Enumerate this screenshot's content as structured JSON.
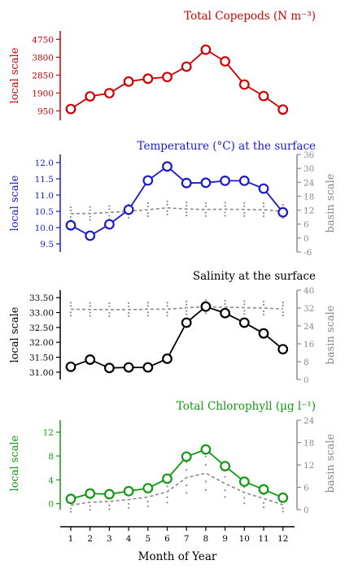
{
  "colors": {
    "copepods": "#cc0000",
    "temperature": "#1a1acc",
    "salinity": "#000000",
    "chlorophyll": "#119911",
    "basin": "#8a8a8a"
  },
  "x_axis": {
    "label": "Month of Year",
    "ticks": [
      "1",
      "2",
      "3",
      "4",
      "5",
      "6",
      "7",
      "8",
      "9",
      "10",
      "11",
      "12"
    ]
  },
  "panels": [
    {
      "key": "copepods",
      "title": "Total Copepods (N m⁻³)",
      "left_label": "local scale",
      "right_label": "",
      "left_ticks": [
        "950",
        "1900",
        "2850",
        "3800",
        "4750"
      ],
      "right_ticks": []
    },
    {
      "key": "temperature",
      "title": "Temperature (°C) at the surface",
      "left_label": "local scale",
      "right_label": "basin scale",
      "left_ticks": [
        "9.5",
        "10.0",
        "10.5",
        "11.0",
        "11.5",
        "12.0"
      ],
      "right_ticks": [
        "-6",
        "0",
        "6",
        "12",
        "18",
        "24",
        "30",
        "36"
      ]
    },
    {
      "key": "salinity",
      "title": "Salinity at the surface",
      "left_label": "local scale",
      "right_label": "basin scale",
      "left_ticks": [
        "31.00",
        "31.50",
        "32.00",
        "32.50",
        "33.00",
        "33.50"
      ],
      "right_ticks": [
        "0",
        "8",
        "16",
        "24",
        "32",
        "40"
      ]
    },
    {
      "key": "chlorophyll",
      "title": "Total Chlorophyll (µg l⁻¹)",
      "left_label": "local scale",
      "right_label": "basin scale",
      "left_ticks": [
        "0",
        "4",
        "8",
        "12"
      ],
      "right_ticks": [
        "0",
        "6",
        "12",
        "18",
        "24"
      ]
    }
  ],
  "chart_data": [
    {
      "type": "line",
      "title": "Total Copepods (N m⁻³)",
      "xlabel": "Month of Year",
      "ylabel": "local scale",
      "x": [
        1,
        2,
        3,
        4,
        5,
        6,
        7,
        8,
        9,
        10,
        11,
        12
      ],
      "ylim": [
        450,
        5200
      ],
      "series": [
        {
          "values": [
            1050,
            1720,
            1890,
            2510,
            2660,
            2750,
            3300,
            4200,
            3580,
            2350,
            1740,
            1020
          ]
        }
      ]
    },
    {
      "type": "line",
      "title": "Temperature (°C) at the surface",
      "xlabel": "Month of Year",
      "ylabel": "local scale",
      "y2label": "basin scale",
      "x": [
        1,
        2,
        3,
        4,
        5,
        6,
        7,
        8,
        9,
        10,
        11,
        12
      ],
      "ylim": [
        9.25,
        12.25
      ],
      "y2lim": [
        -6,
        36
      ],
      "series": [
        {
          "axis": "local",
          "values": [
            10.07,
            9.75,
            10.1,
            10.55,
            11.45,
            11.88,
            11.37,
            11.38,
            11.44,
            11.44,
            11.2,
            10.47
          ]
        },
        {
          "axis": "basin",
          "values": [
            10.5,
            10.6,
            11.0,
            11.6,
            12.2,
            13.0,
            12.5,
            12.3,
            12.4,
            12.3,
            12.2,
            11.5
          ]
        }
      ]
    },
    {
      "type": "line",
      "title": "Salinity at the surface",
      "xlabel": "Month of Year",
      "ylabel": "local scale",
      "y2label": "basin scale",
      "x": [
        1,
        2,
        3,
        4,
        5,
        6,
        7,
        8,
        9,
        10,
        11,
        12
      ],
      "ylim": [
        30.75,
        33.75
      ],
      "y2lim": [
        0,
        40
      ],
      "series": [
        {
          "axis": "local",
          "values": [
            31.18,
            31.42,
            31.14,
            31.16,
            31.16,
            31.45,
            32.66,
            33.2,
            32.98,
            32.66,
            32.3,
            31.77
          ]
        },
        {
          "axis": "basin",
          "values": [
            31.5,
            31.4,
            31.3,
            31.3,
            31.5,
            31.5,
            32.1,
            32.6,
            32.4,
            32.2,
            32.0,
            31.6
          ]
        }
      ]
    },
    {
      "type": "line",
      "title": "Total Chlorophyll (µg l⁻¹)",
      "xlabel": "Month of Year",
      "ylabel": "local scale",
      "y2label": "basin scale",
      "x": [
        1,
        2,
        3,
        4,
        5,
        6,
        7,
        8,
        9,
        10,
        11,
        12
      ],
      "ylim": [
        -1,
        14
      ],
      "y2lim": [
        0,
        24
      ],
      "series": [
        {
          "axis": "local",
          "values": [
            0.8,
            1.7,
            1.6,
            2.1,
            2.6,
            4.2,
            7.9,
            9.1,
            6.3,
            3.7,
            2.4,
            1.0
          ]
        },
        {
          "axis": "basin",
          "values": [
            1.2,
            2.0,
            2.2,
            2.7,
            3.4,
            4.8,
            8.6,
            9.8,
            7.0,
            4.6,
            3.0,
            1.3
          ]
        }
      ]
    }
  ]
}
